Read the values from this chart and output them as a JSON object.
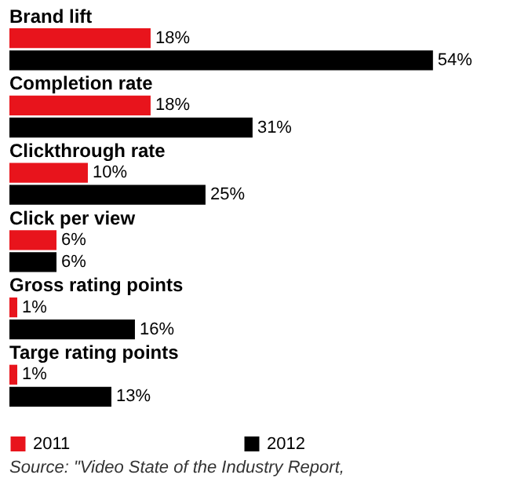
{
  "chart_data": {
    "type": "bar",
    "orientation": "horizontal",
    "categories": [
      "Brand lift",
      "Completion rate",
      "Clickthrough rate",
      "Click per view",
      "Gross rating points",
      "Targe rating points"
    ],
    "series": [
      {
        "name": "2011",
        "color": "#e8141c",
        "values": [
          18,
          18,
          10,
          6,
          1,
          1
        ],
        "value_labels": [
          "18%",
          "18%",
          "10%",
          "6%",
          "1%",
          "1%"
        ]
      },
      {
        "name": "2012",
        "color": "#000000",
        "values": [
          54,
          31,
          25,
          6,
          16,
          13
        ],
        "value_labels": [
          "54%",
          "31%",
          "25%",
          "6%",
          "16%",
          "13%"
        ]
      }
    ],
    "legend": "bottom",
    "annotations": [
      "Source: \"Video State of the Industry Report,"
    ]
  }
}
